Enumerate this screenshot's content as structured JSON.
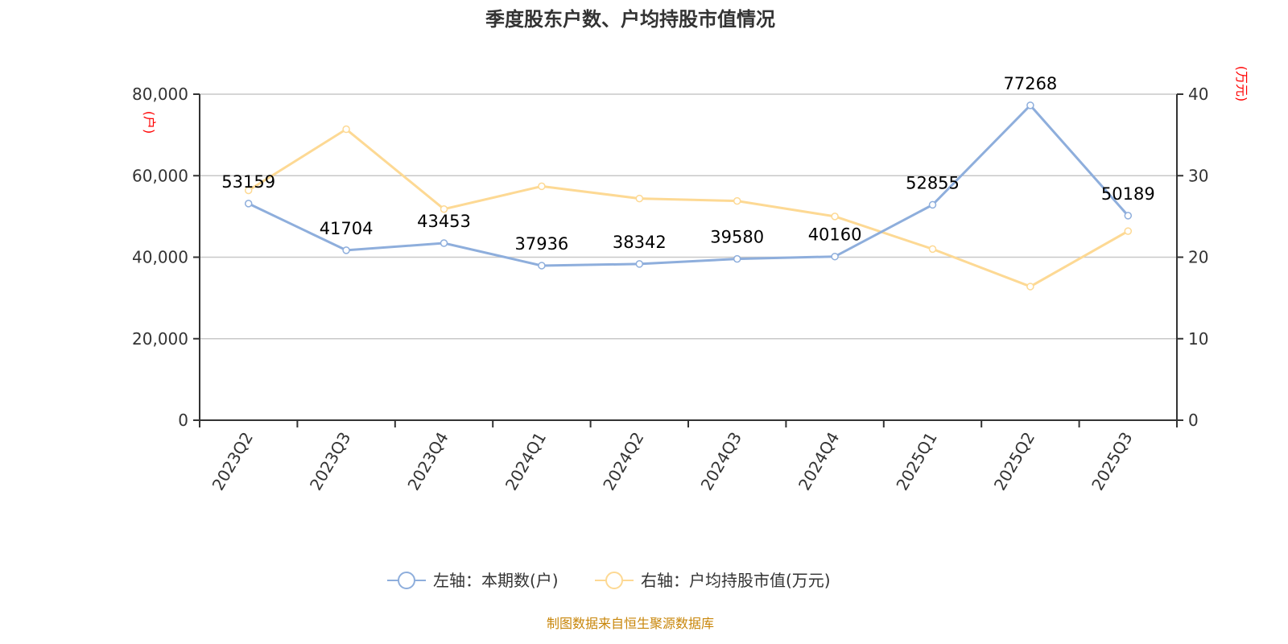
{
  "chart_data": {
    "type": "line",
    "title": "季度股东户数、户均持股市值情况",
    "categories": [
      "2023Q2",
      "2023Q3",
      "2023Q4",
      "2024Q1",
      "2024Q2",
      "2024Q3",
      "2024Q4",
      "2025Q1",
      "2025Q2",
      "2025Q3"
    ],
    "series": [
      {
        "name": "左轴：本期数(户)",
        "axis": "left",
        "color": "#8eaedc",
        "values": [
          53159,
          41704,
          43453,
          37936,
          38342,
          39580,
          40160,
          52855,
          77268,
          50189
        ],
        "labels": [
          "53159",
          "41704",
          "43453",
          "37936",
          "38342",
          "39580",
          "40160",
          "52855",
          "77268",
          "50189"
        ]
      },
      {
        "name": "右轴：户均持股市值(万元)",
        "axis": "right",
        "color": "#fdd994",
        "values": [
          28.2,
          35.7,
          25.9,
          28.7,
          27.2,
          26.9,
          25.0,
          21.0,
          16.4,
          23.2
        ]
      }
    ],
    "yleft": {
      "label": "(户)",
      "ylim": [
        0,
        80000
      ],
      "ticks": [
        "0",
        "20,000",
        "40,000",
        "60,000",
        "80,000"
      ]
    },
    "yright": {
      "label": "(万元)",
      "ylim": [
        0,
        40
      ],
      "ticks": [
        "0",
        "10",
        "20",
        "30",
        "40"
      ]
    },
    "grid": true,
    "legend": "bottom-center"
  },
  "footer": "制图数据来自恒生聚源数据库"
}
